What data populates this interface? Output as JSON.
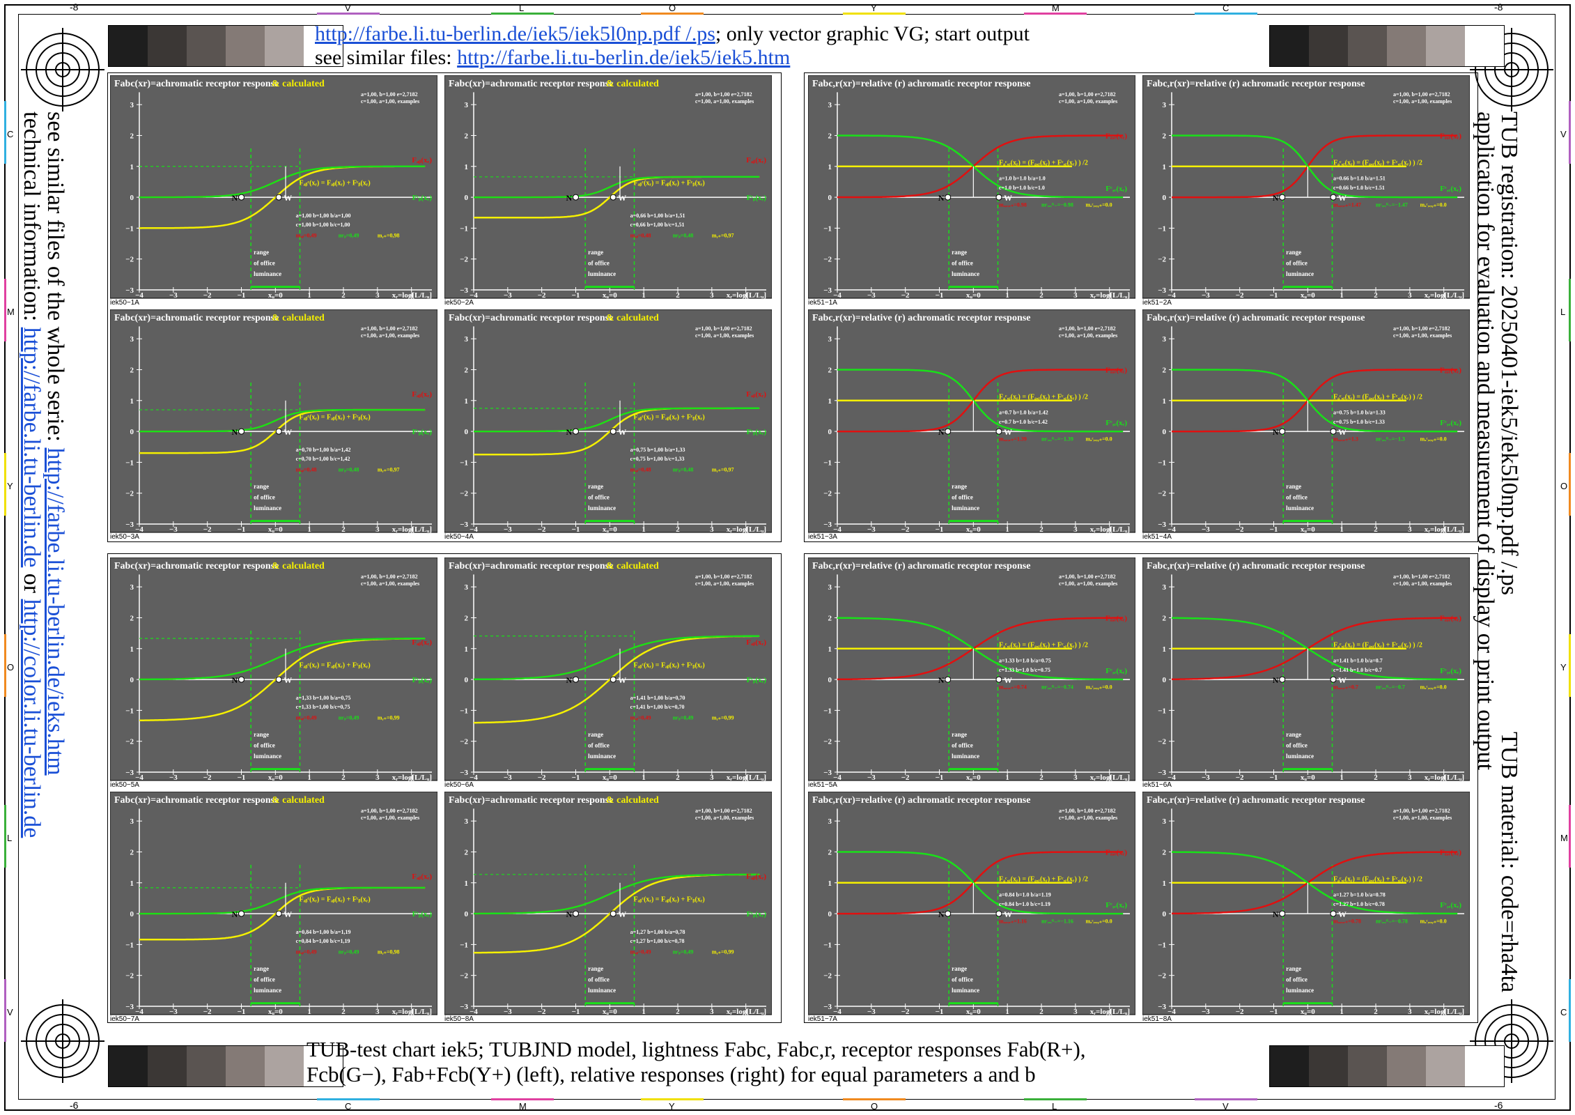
{
  "header": {
    "line1_link": "http://farbe.li.tu-berlin.de/iek5/iek5l0np.pdf /.ps",
    "line1_text": "; only vector graphic VG; start output",
    "line2_text": "see similar files: ",
    "line2_link": "http://farbe.li.tu-berlin.de/iek5/iek5.htm"
  },
  "left_side": {
    "line1": "see similar files of the whole serie: ",
    "line1_link": "http://farbe.li.tu-berlin.de/ieks.htm",
    "line2": "technical information: ",
    "line2_link1": "http://farbe.li.tu-berlin.de",
    "line2_or": " or ",
    "line2_link2": "http://color.li.tu-berlin.de"
  },
  "right_side": {
    "line1": "TUB registration: 20250401-iek5/iek5l0np.pdf /.ps",
    "line2": "application for evaluation and measurement of display or print output",
    "line3": "TUB material: code=rha4ta"
  },
  "footer": {
    "line1": "TUB-test chart iek5; TUBJND model, lightness Fabc, Fabc,r, receptor responses Fab(R+),",
    "line2": "Fcb(G−), Fab+Fcb(Y+) (left), relative responses (right) for equal parameters a and b"
  },
  "edge_marks": {
    "top": [
      "V",
      "L",
      "O",
      "Y",
      "M",
      "C"
    ],
    "bottom": [
      "C",
      "M",
      "Y",
      "O",
      "L",
      "V"
    ],
    "left": [
      "C",
      "M",
      "Y",
      "O",
      "L",
      "V"
    ],
    "right": [
      "V",
      "L",
      "O",
      "Y",
      "M",
      "C"
    ],
    "corner": "-6",
    "corner_top": "-8"
  },
  "colors": {
    "panel_bg": "#5f5f5f",
    "red": "#e01010",
    "green": "#19e019",
    "yellow": "#f5f000",
    "white": "#ffffff",
    "link": "#1a4fd6"
  },
  "gray_strip": [
    "#1e1e1e",
    "#3b3735",
    "#5a5451",
    "#847a76",
    "#aca3a0",
    "#ffffff"
  ],
  "chart_data": [
    {
      "type": "line",
      "id": "iek50-1A",
      "kind": "abs",
      "a": "1,00",
      "b": "1,00",
      "c": "1,00",
      "ba": "1,00",
      "bc": "1,00",
      "mab": "mₐᵦ=0,49",
      "mcb": "mᶜᵦ=0,49",
      "myp": "mᵧ₊=0,98",
      "under": "iek50−1A"
    },
    {
      "type": "line",
      "id": "iek50-2A",
      "kind": "abs",
      "a": "0,66",
      "b": "1,00",
      "c": "0,66",
      "ba": "1,51",
      "bc": "1,51",
      "mab": "mₐᵦ=0,48",
      "mcb": "mᶜᵦ=0,48",
      "myp": "mᵧ₊=0,97",
      "under": "iek50−2A"
    },
    {
      "type": "line",
      "id": "iek51-1A",
      "kind": "rel",
      "a": "1.0",
      "b": "1.0",
      "c": "1.0",
      "ba": "1.0",
      "bc": "1.0",
      "mab": "mₐ,ᵣ,ᵣ₊=0.98",
      "mcb": "mᶜ,ᵣ,ᴳ₋=−0.98",
      "myp": "mₐᶜ,ᵣ,ᵧ₊=0.0",
      "under": "iek51−1A"
    },
    {
      "type": "line",
      "id": "iek51-2A",
      "kind": "rel",
      "a": "0.66",
      "b": "1.0",
      "c": "0.66",
      "ba": "1.51",
      "bc": "1.51",
      "mab": "mₐ,ᵣ,ᵣ₊=1.47",
      "mcb": "mᶜ,ᵣ,ᴳ₋=−1.47",
      "myp": "mₐᶜ,ᵣ,ᵧ₊=0.0",
      "under": "iek51−2A"
    },
    {
      "type": "line",
      "id": "iek50-3A",
      "kind": "abs",
      "a": "0,70",
      "b": "1,00",
      "c": "0,70",
      "ba": "1,42",
      "bc": "1,42",
      "mab": "mₐᵦ=0,48",
      "mcb": "mᶜᵦ=0,48",
      "myp": "mᵧ₊=0,97",
      "under": "iek50−3A"
    },
    {
      "type": "line",
      "id": "iek50-4A",
      "kind": "abs",
      "a": "0,75",
      "b": "1,00",
      "c": "0,75",
      "ba": "1,33",
      "bc": "1,33",
      "mab": "mₐᵦ=0,48",
      "mcb": "mᶜᵦ=0,48",
      "myp": "mᵧ₊=0,97",
      "under": "iek50−4A"
    },
    {
      "type": "line",
      "id": "iek51-3A",
      "kind": "rel",
      "a": "0.7",
      "b": "1.0",
      "c": "0.7",
      "ba": "1.42",
      "bc": "1.42",
      "mab": "mₐ,ᵣ,ᵣ₊=1.39",
      "mcb": "mᶜ,ᵣ,ᴳ₋=−1.39",
      "myp": "mₐᶜ,ᵣ,ᵧ₊=0.0",
      "under": "iek51−3A"
    },
    {
      "type": "line",
      "id": "iek51-4A",
      "kind": "rel",
      "a": "0.75",
      "b": "1.0",
      "c": "0.75",
      "ba": "1.33",
      "bc": "1.33",
      "mab": "mₐ,ᵣ,ᵣ₊=1.3",
      "mcb": "mᶜ,ᵣ,ᴳ₋=−1.3",
      "myp": "mₐᶜ,ᵣ,ᵧ₊=0.0",
      "under": "iek51−4A"
    },
    {
      "type": "line",
      "id": "iek50-5A",
      "kind": "abs",
      "a": "1,33",
      "b": "1,00",
      "c": "1,33",
      "ba": "0,75",
      "bc": "0,75",
      "mab": "mₐᵦ=0,49",
      "mcb": "mᶜᵦ=0,49",
      "myp": "mᵧ₊=0,99",
      "under": "iek50−5A"
    },
    {
      "type": "line",
      "id": "iek50-6A",
      "kind": "abs",
      "a": "1,41",
      "b": "1,00",
      "c": "1,41",
      "ba": "0,70",
      "bc": "0,70",
      "mab": "mₐᵦ=0,49",
      "mcb": "mᶜᵦ=0,49",
      "myp": "mᵧ₊=0,99",
      "under": "iek50−6A"
    },
    {
      "type": "line",
      "id": "iek51-5A",
      "kind": "rel",
      "a": "1.33",
      "b": "1.0",
      "c": "1.33",
      "ba": "0.75",
      "bc": "0.75",
      "mab": "mₐ,ᵣ,ᵣ₊=0.74",
      "mcb": "mᶜ,ᵣ,ᴳ₋=−0.74",
      "myp": "mₐᶜ,ᵣ,ᵧ₊=0.0",
      "under": "iek51−5A"
    },
    {
      "type": "line",
      "id": "iek51-6A",
      "kind": "rel",
      "a": "1.41",
      "b": "1.0",
      "c": "1.41",
      "ba": "0.7",
      "bc": "0.7",
      "mab": "mₐ,ᵣ,ᵣ₊=0.7",
      "mcb": "mᶜ,ᵣ,ᴳ₋=−0.7",
      "myp": "mₐᶜ,ᵣ,ᵧ₊=0.0",
      "under": "iek51−6A"
    },
    {
      "type": "line",
      "id": "iek50-7A",
      "kind": "abs",
      "a": "0,84",
      "b": "1,00",
      "c": "0,84",
      "ba": "1,19",
      "bc": "1,19",
      "mab": "mₐᵦ=0,49",
      "mcb": "mᶜᵦ=0,49",
      "myp": "mᵧ₊=0,98",
      "under": "iek50−7A"
    },
    {
      "type": "line",
      "id": "iek50-8A",
      "kind": "abs",
      "a": "1,27",
      "b": "1,00",
      "c": "1,27",
      "ba": "0,78",
      "bc": "0,78",
      "mab": "mₐᵦ=0,49",
      "mcb": "mᶜᵦ=0,49",
      "myp": "mᵧ₊=0,99",
      "under": "iek50−8A"
    },
    {
      "type": "line",
      "id": "iek51-7A",
      "kind": "rel",
      "a": "0.84",
      "b": "1.0",
      "c": "0.84",
      "ba": "1.19",
      "bc": "1.19",
      "mab": "mₐ,ᵣ,ᵣ₊=1.16",
      "mcb": "mᶜ,ᵣ,ᴳ₋=−1.16",
      "myp": "mₐᶜ,ᵣ,ᵧ₊=0.0",
      "under": "iek51−7A"
    },
    {
      "type": "line",
      "id": "iek51-8A",
      "kind": "rel",
      "a": "1.27",
      "b": "1.0",
      "c": "1.27",
      "ba": "0.78",
      "bc": "0.78",
      "mab": "mₐ,ᵣ,ᵣ₊=0.78",
      "mcb": "mᶜ,ᵣ,ᴳ₋=−0.78",
      "myp": "mₐᶜ,ᵣ,ᵧ₊=0.0",
      "under": "iek51−8A"
    }
  ],
  "chart_common": {
    "x_ticks": [
      "−4",
      "−3",
      "−2",
      "−1",
      "xᵤ=0",
      "1",
      "2",
      "3",
      "4"
    ],
    "y_ticks": [
      "3",
      "2",
      "1",
      "0",
      "−1",
      "−2",
      "−3"
    ],
    "xlim": [
      -4,
      4.6
    ],
    "ylim": [
      -3,
      3.5
    ],
    "abs_title": "Fabc(xr)=achromatic receptor response",
    "abs_title_extra": " & calculated",
    "rel_title": "Fabc,r(xr)=relative (r) achromatic receptor response",
    "xlabel": "xᵣ=log[L/Lᵤ]",
    "abs_consts_1": "a=1,00, b=1,00 e=2,7182",
    "abs_consts_2": "c=1,00, a=1,00, examples",
    "rel_consts_1": "a=1,00, b=1,00 e=2,7182",
    "rel_consts_2": "c=1,00, a=1,00, examples",
    "range_label_1": "range",
    "range_label_2": "of office",
    "range_label_3": "luminance",
    "point_N": "N",
    "point_W": "W",
    "lbl_Fab": "Fₐᵦ(xᵣ)",
    "lbl_Fcb": "Fᶜᵦ(xᵣ)",
    "lbl_Fabc": "Fₐᵦᶜ(xᵣ) = Fₐᵦ(xᵣ) + Fᶜᵦ(xᵣ)",
    "lbl_Far": "Fₐ,ᵣ(xᵣ)",
    "lbl_Fcr": "Fᶜ,ᵣ(xᵣ)",
    "lbl_Facr": "Fₐᶜ,ᵣ(xᵣ) = (Fₐ,ᵣ(xᵣ) + Fᶜ,ᵣ(xᵣ) ) /2"
  }
}
